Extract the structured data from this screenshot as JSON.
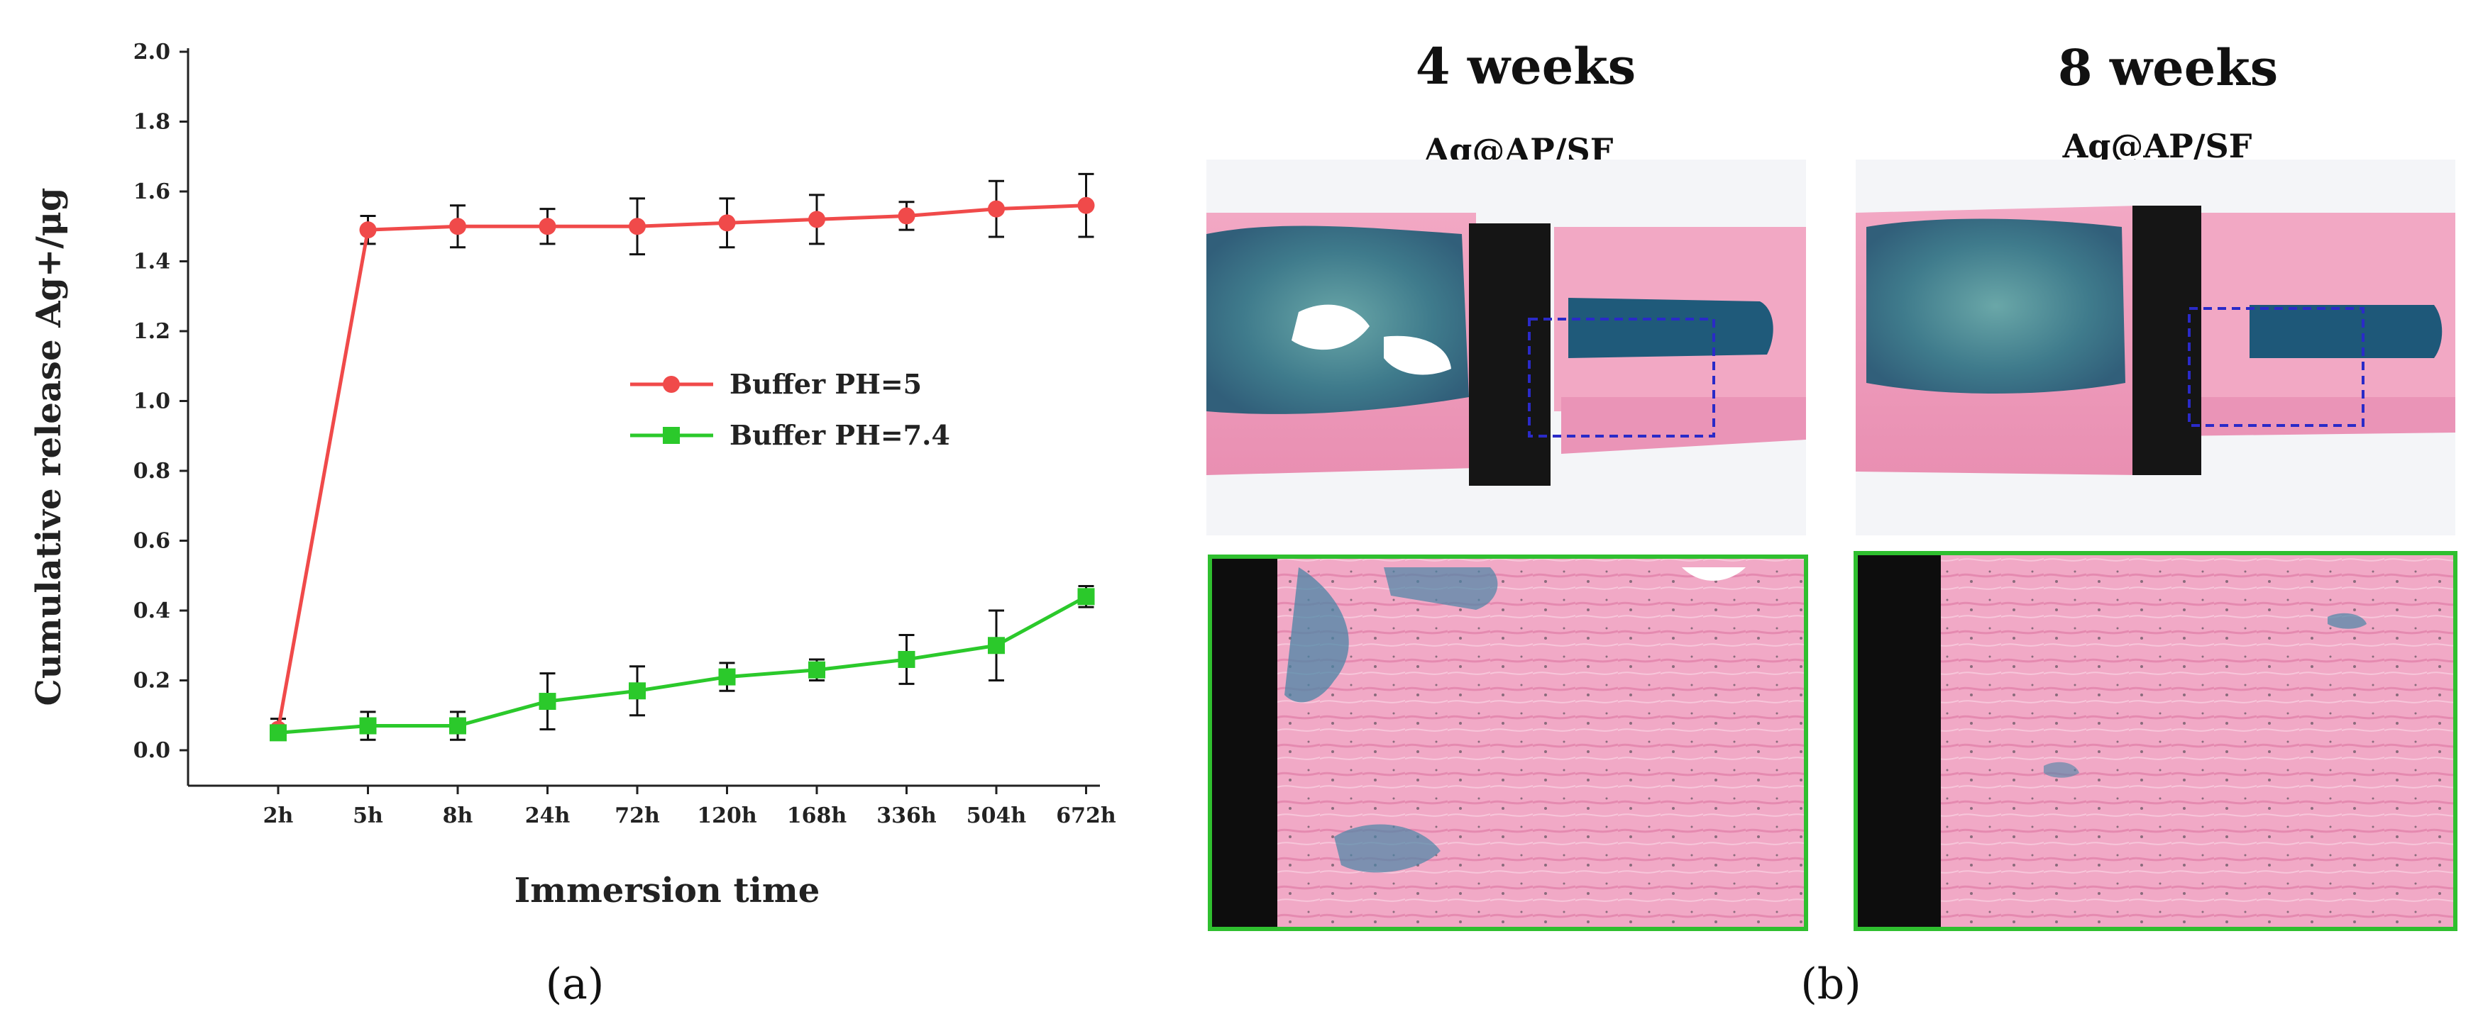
{
  "chart_data": {
    "type": "line",
    "xlabel": "Immersion time",
    "ylabel": "Cumulative release Ag+/μg",
    "ylim": [
      0,
      2.0
    ],
    "yticks": [
      "0.0",
      "0.2",
      "0.4",
      "0.6",
      "0.8",
      "1.0",
      "1.2",
      "1.4",
      "1.6",
      "1.8",
      "2.0"
    ],
    "categories": [
      "2h",
      "5h",
      "8h",
      "24h",
      "72h",
      "120h",
      "168h",
      "336h",
      "504h",
      "672h"
    ],
    "legend_position": "center-right",
    "grid": false,
    "series": [
      {
        "name": "Buffer PH=5",
        "color": "#f04a4a",
        "marker": "circle",
        "values": [
          0.06,
          1.49,
          1.5,
          1.5,
          1.5,
          1.51,
          1.52,
          1.53,
          1.55,
          1.56
        ],
        "errors": [
          0.03,
          0.04,
          0.06,
          0.05,
          0.08,
          0.07,
          0.07,
          0.04,
          0.08,
          0.09
        ]
      },
      {
        "name": "Buffer PH=7.4",
        "color": "#2bc92b",
        "marker": "square",
        "values": [
          0.05,
          0.07,
          0.07,
          0.14,
          0.17,
          0.21,
          0.23,
          0.26,
          0.3,
          0.44
        ],
        "errors": [
          0.02,
          0.04,
          0.04,
          0.08,
          0.07,
          0.04,
          0.03,
          0.07,
          0.1,
          0.03
        ]
      }
    ]
  },
  "panel_a_label": "(a)",
  "panel_b_label": "(b)",
  "panel_b": {
    "columns": [
      {
        "title": "4 weeks",
        "label": "Ag@AP/SF"
      },
      {
        "title": "8 weeks",
        "label": "Ag@AP/SF"
      }
    ]
  }
}
